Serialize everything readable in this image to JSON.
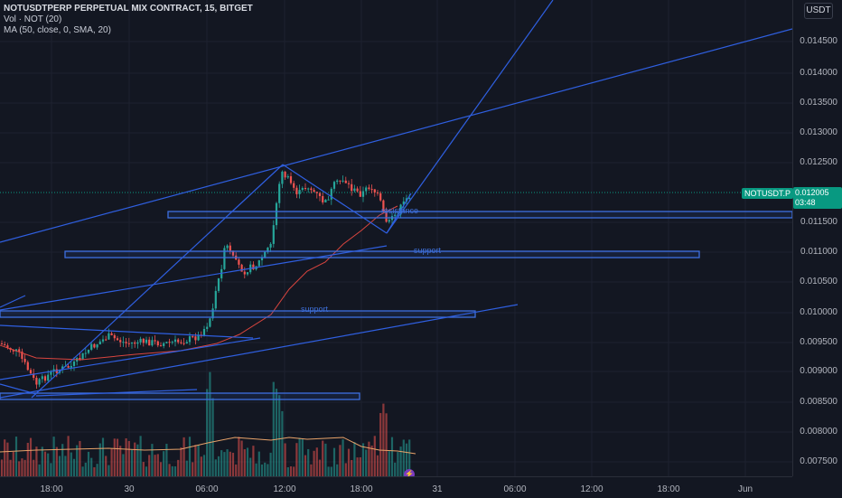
{
  "header": {
    "title": "NOTUSDTPERP PERPETUAL MIX CONTRACT, 15, BITGET",
    "volume_indicator": "Vol · NOT (20)",
    "ma_indicator": "MA (50, close, 0, SMA, 20)",
    "currency": "USDT"
  },
  "price_axis": {
    "ticks": [
      "0.014500",
      "0.014000",
      "0.013500",
      "0.013000",
      "0.012500",
      "0.011500",
      "0.011000",
      "0.010500",
      "0.010000",
      "0.009500",
      "0.009000",
      "0.008500",
      "0.008000",
      "0.007500"
    ]
  },
  "time_axis": {
    "ticks": [
      "18:00",
      "30",
      "06:00",
      "12:00",
      "18:00",
      "31",
      "06:00",
      "12:00",
      "18:00",
      "Jun"
    ]
  },
  "last_price": {
    "symbol": "NOTUSDT.P",
    "value": "0.012005",
    "countdown": "03:48"
  },
  "annotations": {
    "resistance": "resistance",
    "support_mid": "support",
    "support_low": "support"
  },
  "colors": {
    "up": "#26a69a",
    "down": "#ef5350",
    "trendline": "#2f5fe0",
    "ma": "#e0504a",
    "vol_ma": "#f0a060"
  },
  "icons": {
    "alert": "lightning-icon"
  }
}
